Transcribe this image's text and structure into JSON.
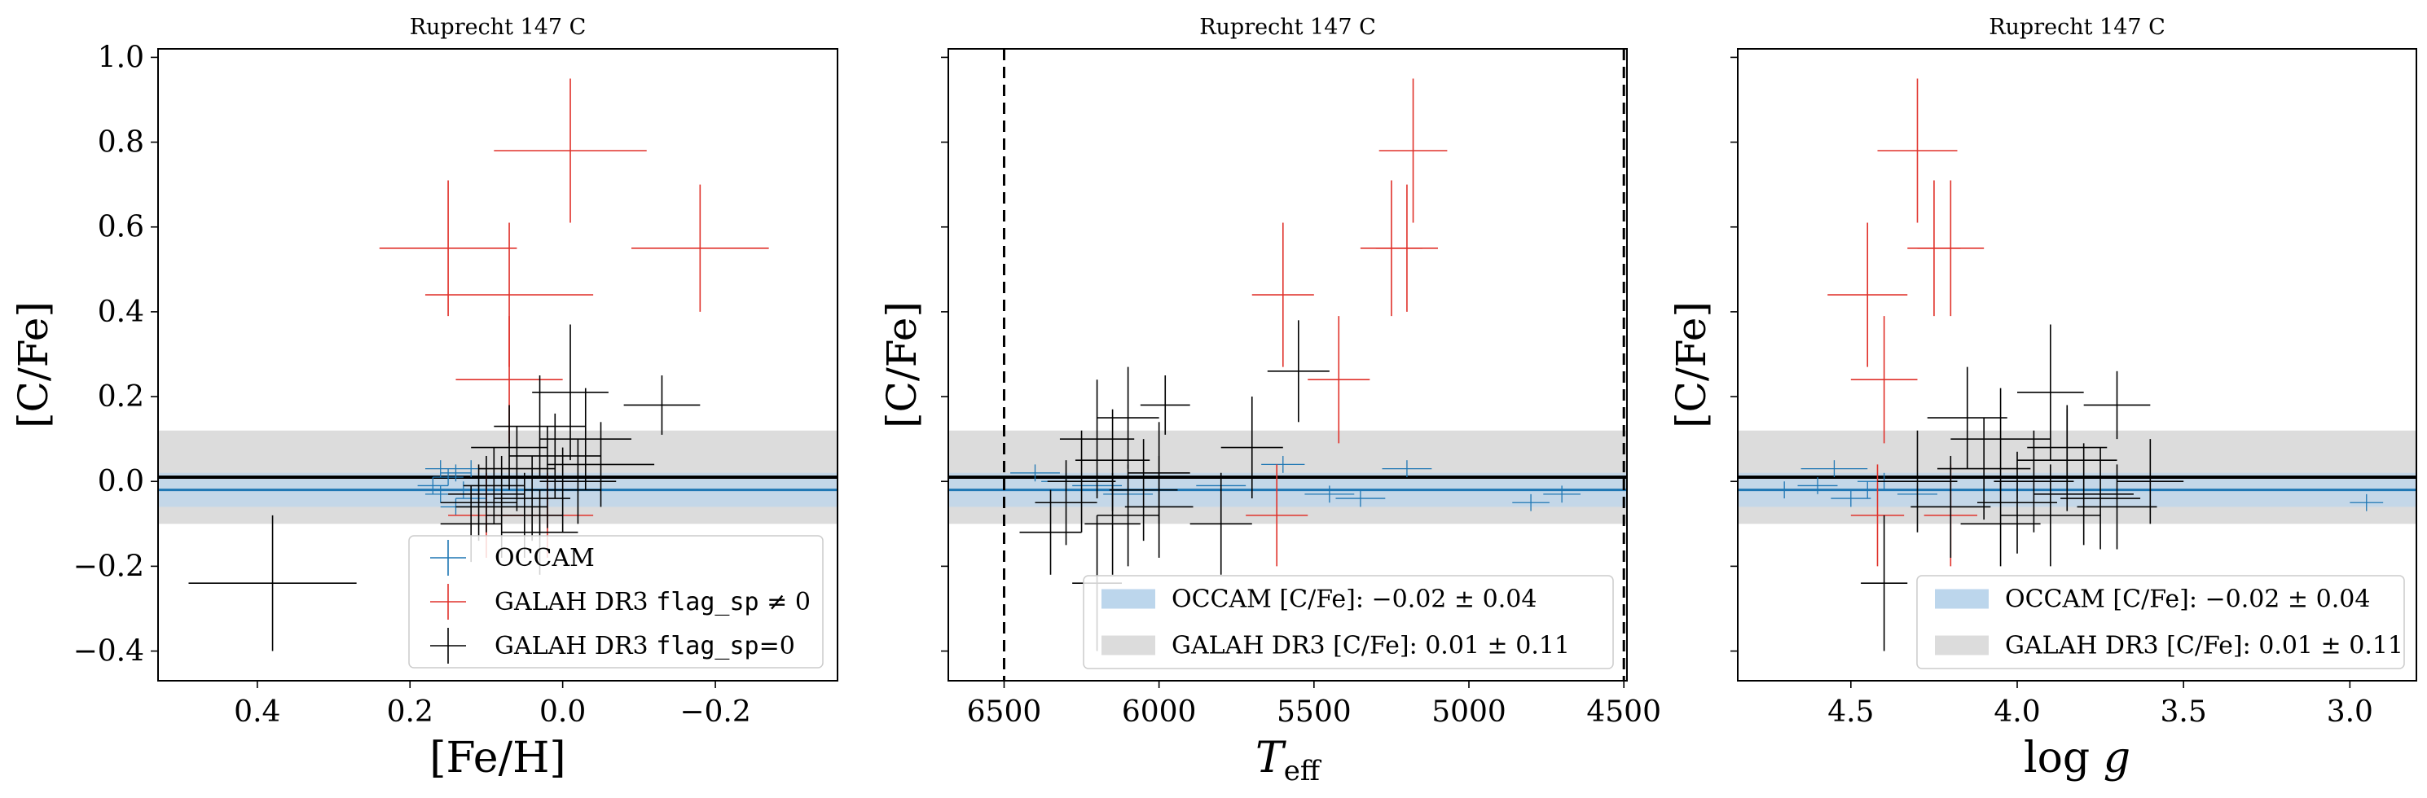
{
  "colors": {
    "occam": "#1f77b4",
    "occam_band": "#bcd6ec",
    "galah_band": "#dcdcdc",
    "galah_flag_nonzero": "#e0322b",
    "galah_flag_zero": "#000000"
  },
  "chart_data": [
    {
      "type": "scatter",
      "title": "Ruprecht 147 C",
      "xlabel": "[Fe/H]",
      "ylabel": "[C/Fe]",
      "xlim": [
        0.53,
        -0.36
      ],
      "ylim": [
        -0.47,
        1.02
      ],
      "xticks": [
        0.4,
        0.2,
        0.0,
        -0.2
      ],
      "xtick_labels": [
        "0.4",
        "0.2",
        "0.0",
        "−0.2"
      ],
      "yticks": [
        -0.4,
        -0.2,
        0.0,
        0.2,
        0.4,
        0.6,
        0.8,
        1.0
      ],
      "ytick_labels": [
        "−0.4",
        "−0.2",
        "0.0",
        "0.2",
        "0.4",
        "0.6",
        "0.8",
        "1.0"
      ],
      "show_ytick_labels": true,
      "legend": {
        "location": "lower right",
        "entries": [
          {
            "type": "cross",
            "series": 0,
            "label": "OCCAM"
          },
          {
            "type": "cross",
            "series": 1,
            "label": "GALAH DR3 flag_sp ≠ 0"
          },
          {
            "type": "cross",
            "series": 2,
            "label": "GALAH DR3 flag_sp=0"
          }
        ]
      },
      "bands": [
        {
          "series": 2,
          "center": 0.01,
          "half_width": 0.11
        },
        {
          "series": 0,
          "center": -0.02,
          "half_width": 0.04
        }
      ],
      "series": [
        {
          "name": "OCCAM",
          "points": [
            {
              "x": 0.16,
              "y": -0.03,
              "xerr": 0.02,
              "yerr": 0.02
            },
            {
              "x": 0.14,
              "y": 0.02,
              "xerr": 0.02,
              "yerr": 0.02
            },
            {
              "x": 0.17,
              "y": -0.01,
              "xerr": 0.02,
              "yerr": 0.02
            },
            {
              "x": 0.12,
              "y": -0.04,
              "xerr": 0.02,
              "yerr": 0.02
            },
            {
              "x": 0.13,
              "y": -0.02,
              "xerr": 0.02,
              "yerr": 0.02
            },
            {
              "x": 0.15,
              "y": 0.01,
              "xerr": 0.02,
              "yerr": 0.02
            },
            {
              "x": 0.11,
              "y": -0.03,
              "xerr": 0.02,
              "yerr": 0.02
            },
            {
              "x": 0.1,
              "y": -0.05,
              "xerr": 0.02,
              "yerr": 0.02
            },
            {
              "x": 0.14,
              "y": -0.06,
              "xerr": 0.02,
              "yerr": 0.02
            },
            {
              "x": 0.12,
              "y": 0.03,
              "xerr": 0.02,
              "yerr": 0.02
            },
            {
              "x": 0.09,
              "y": -0.03,
              "xerr": 0.02,
              "yerr": 0.02
            },
            {
              "x": 0.16,
              "y": 0.03,
              "xerr": 0.02,
              "yerr": 0.02
            }
          ]
        },
        {
          "name": "GALAH DR3 flag_sp ≠ 0",
          "points": [
            {
              "x": -0.01,
              "y": 0.78,
              "xerr": 0.1,
              "yerr": 0.17
            },
            {
              "x": 0.15,
              "y": 0.55,
              "xerr": 0.09,
              "yerr": 0.16
            },
            {
              "x": -0.18,
              "y": 0.55,
              "xerr": 0.09,
              "yerr": 0.15
            },
            {
              "x": 0.07,
              "y": 0.44,
              "xerr": 0.11,
              "yerr": 0.17
            },
            {
              "x": 0.07,
              "y": 0.24,
              "xerr": 0.07,
              "yerr": 0.15
            },
            {
              "x": 0.1,
              "y": -0.08,
              "xerr": 0.05,
              "yerr": 0.1
            },
            {
              "x": 0.02,
              "y": -0.08,
              "xerr": 0.06,
              "yerr": 0.1
            }
          ]
        },
        {
          "name": "GALAH DR3 flag_sp=0",
          "points": [
            {
              "x": 0.38,
              "y": -0.24,
              "xerr": 0.11,
              "yerr": 0.16
            },
            {
              "x": -0.13,
              "y": 0.18,
              "xerr": 0.05,
              "yerr": 0.07
            },
            {
              "x": -0.01,
              "y": 0.21,
              "xerr": 0.05,
              "yerr": 0.16
            },
            {
              "x": 0.03,
              "y": 0.13,
              "xerr": 0.06,
              "yerr": 0.12
            },
            {
              "x": -0.03,
              "y": 0.1,
              "xerr": 0.06,
              "yerr": 0.12
            },
            {
              "x": -0.05,
              "y": 0.04,
              "xerr": 0.07,
              "yerr": 0.1
            },
            {
              "x": 0.06,
              "y": 0.03,
              "xerr": 0.05,
              "yerr": 0.1
            },
            {
              "x": 0.02,
              "y": 0.01,
              "xerr": 0.06,
              "yerr": 0.12
            },
            {
              "x": 0.09,
              "y": -0.01,
              "xerr": 0.04,
              "yerr": 0.09
            },
            {
              "x": 0.0,
              "y": -0.02,
              "xerr": 0.05,
              "yerr": 0.1
            },
            {
              "x": 0.04,
              "y": -0.04,
              "xerr": 0.05,
              "yerr": 0.1
            },
            {
              "x": 0.11,
              "y": -0.05,
              "xerr": 0.05,
              "yerr": 0.09
            },
            {
              "x": 0.08,
              "y": -0.06,
              "xerr": 0.06,
              "yerr": 0.12
            },
            {
              "x": 0.05,
              "y": -0.08,
              "xerr": 0.05,
              "yerr": 0.1
            },
            {
              "x": 0.12,
              "y": -0.1,
              "xerr": 0.04,
              "yerr": 0.09
            },
            {
              "x": 0.01,
              "y": 0.06,
              "xerr": 0.06,
              "yerr": 0.1
            },
            {
              "x": -0.02,
              "y": 0.0,
              "xerr": 0.05,
              "yerr": 0.1
            },
            {
              "x": 0.07,
              "y": 0.08,
              "xerr": 0.05,
              "yerr": 0.1
            },
            {
              "x": 0.1,
              "y": -0.03,
              "xerr": 0.05,
              "yerr": 0.09
            },
            {
              "x": 0.03,
              "y": -0.12,
              "xerr": 0.05,
              "yerr": 0.1
            }
          ]
        }
      ]
    },
    {
      "type": "scatter",
      "title": "Ruprecht 147 C",
      "xlabel": "T_eff",
      "ylabel": "[C/Fe]",
      "xlim": [
        6680,
        4490
      ],
      "ylim": [
        -0.47,
        1.02
      ],
      "xticks": [
        6500,
        6000,
        5500,
        5000,
        4500
      ],
      "xtick_labels": [
        "6500",
        "6000",
        "5500",
        "5000",
        "4500"
      ],
      "yticks": [
        -0.4,
        -0.2,
        0.0,
        0.2,
        0.4,
        0.6,
        0.8,
        1.0
      ],
      "ytick_labels": [
        "−0.4",
        "−0.2",
        "0.0",
        "0.2",
        "0.4",
        "0.6",
        "0.8",
        "1.0"
      ],
      "show_ytick_labels": false,
      "vlines": [
        6500,
        4500
      ],
      "legend": {
        "location": "lower right",
        "entries": [
          {
            "type": "patch",
            "series": 0,
            "label": "OCCAM [C/Fe]: −0.02 ± 0.04"
          },
          {
            "type": "patch",
            "series": 2,
            "label": "GALAH DR3 [C/Fe]: 0.01 ± 0.11"
          }
        ]
      },
      "bands": [
        {
          "series": 2,
          "center": 0.01,
          "half_width": 0.11
        },
        {
          "series": 0,
          "center": -0.02,
          "half_width": 0.04
        }
      ],
      "series": [
        {
          "name": "OCCAM",
          "points": [
            {
              "x": 6400,
              "y": 0.02,
              "xerr": 80,
              "yerr": 0.02
            },
            {
              "x": 6200,
              "y": -0.01,
              "xerr": 80,
              "yerr": 0.02
            },
            {
              "x": 6100,
              "y": -0.03,
              "xerr": 80,
              "yerr": 0.02
            },
            {
              "x": 6300,
              "y": 0.0,
              "xerr": 80,
              "yerr": 0.02
            },
            {
              "x": 5600,
              "y": 0.04,
              "xerr": 70,
              "yerr": 0.02
            },
            {
              "x": 5450,
              "y": -0.03,
              "xerr": 80,
              "yerr": 0.02
            },
            {
              "x": 5200,
              "y": 0.03,
              "xerr": 80,
              "yerr": 0.02
            },
            {
              "x": 4800,
              "y": -0.05,
              "xerr": 60,
              "yerr": 0.02
            },
            {
              "x": 4700,
              "y": -0.03,
              "xerr": 60,
              "yerr": 0.02
            },
            {
              "x": 5350,
              "y": -0.04,
              "xerr": 80,
              "yerr": 0.02
            },
            {
              "x": 6000,
              "y": -0.02,
              "xerr": 80,
              "yerr": 0.02
            },
            {
              "x": 5800,
              "y": -0.01,
              "xerr": 80,
              "yerr": 0.02
            }
          ]
        },
        {
          "name": "GALAH DR3 flag_sp ≠ 0",
          "points": [
            {
              "x": 5180,
              "y": 0.78,
              "xerr": 110,
              "yerr": 0.17
            },
            {
              "x": 5250,
              "y": 0.55,
              "xerr": 100,
              "yerr": 0.16
            },
            {
              "x": 5200,
              "y": 0.55,
              "xerr": 100,
              "yerr": 0.15
            },
            {
              "x": 5600,
              "y": 0.44,
              "xerr": 100,
              "yerr": 0.17
            },
            {
              "x": 5420,
              "y": 0.24,
              "xerr": 100,
              "yerr": 0.15
            },
            {
              "x": 5620,
              "y": -0.08,
              "xerr": 100,
              "yerr": 0.12
            }
          ]
        },
        {
          "name": "GALAH DR3 flag_sp=0",
          "points": [
            {
              "x": 5550,
              "y": 0.26,
              "xerr": 100,
              "yerr": 0.12
            },
            {
              "x": 5980,
              "y": 0.18,
              "xerr": 80,
              "yerr": 0.07
            },
            {
              "x": 6100,
              "y": 0.15,
              "xerr": 100,
              "yerr": 0.12
            },
            {
              "x": 6200,
              "y": 0.1,
              "xerr": 120,
              "yerr": 0.14
            },
            {
              "x": 5700,
              "y": 0.08,
              "xerr": 100,
              "yerr": 0.12
            },
            {
              "x": 6150,
              "y": 0.05,
              "xerr": 120,
              "yerr": 0.12
            },
            {
              "x": 6250,
              "y": 0.0,
              "xerr": 110,
              "yerr": 0.12
            },
            {
              "x": 6050,
              "y": -0.02,
              "xerr": 110,
              "yerr": 0.12
            },
            {
              "x": 6300,
              "y": -0.05,
              "xerr": 100,
              "yerr": 0.1
            },
            {
              "x": 6000,
              "y": -0.06,
              "xerr": 110,
              "yerr": 0.12
            },
            {
              "x": 6100,
              "y": -0.08,
              "xerr": 100,
              "yerr": 0.12
            },
            {
              "x": 5800,
              "y": -0.1,
              "xerr": 100,
              "yerr": 0.12
            },
            {
              "x": 6350,
              "y": -0.12,
              "xerr": 100,
              "yerr": 0.1
            },
            {
              "x": 6150,
              "y": -0.1,
              "xerr": 90,
              "yerr": 0.12
            },
            {
              "x": 6200,
              "y": -0.24,
              "xerr": 80,
              "yerr": 0.16
            },
            {
              "x": 6000,
              "y": 0.02,
              "xerr": 100,
              "yerr": 0.12
            }
          ]
        }
      ]
    },
    {
      "type": "scatter",
      "title": "Ruprecht 147 C",
      "xlabel": "log g",
      "ylabel": "[C/Fe]",
      "xlim": [
        4.84,
        2.8
      ],
      "ylim": [
        -0.47,
        1.02
      ],
      "xticks": [
        4.5,
        4.0,
        3.5,
        3.0
      ],
      "xtick_labels": [
        "4.5",
        "4.0",
        "3.5",
        "3.0"
      ],
      "yticks": [
        -0.4,
        -0.2,
        0.0,
        0.2,
        0.4,
        0.6,
        0.8,
        1.0
      ],
      "ytick_labels": [
        "−0.4",
        "−0.2",
        "0.0",
        "0.2",
        "0.4",
        "0.6",
        "0.8",
        "1.0"
      ],
      "show_ytick_labels": false,
      "legend": {
        "location": "lower right",
        "entries": [
          {
            "type": "patch",
            "series": 0,
            "label": "OCCAM [C/Fe]: −0.02 ± 0.04"
          },
          {
            "type": "patch",
            "series": 2,
            "label": "GALAH DR3 [C/Fe]: 0.01 ± 0.11"
          }
        ]
      },
      "bands": [
        {
          "series": 2,
          "center": 0.01,
          "half_width": 0.11
        },
        {
          "series": 0,
          "center": -0.02,
          "half_width": 0.04
        }
      ],
      "series": [
        {
          "name": "OCCAM",
          "points": [
            {
              "x": 4.55,
              "y": 0.03,
              "xerr": 0.1,
              "yerr": 0.02
            },
            {
              "x": 4.45,
              "y": -0.02,
              "xerr": 0.08,
              "yerr": 0.02
            },
            {
              "x": 4.4,
              "y": 0.0,
              "xerr": 0.08,
              "yerr": 0.02
            },
            {
              "x": 4.6,
              "y": -0.01,
              "xerr": 0.06,
              "yerr": 0.02
            },
            {
              "x": 4.5,
              "y": -0.04,
              "xerr": 0.06,
              "yerr": 0.02
            },
            {
              "x": 4.3,
              "y": -0.03,
              "xerr": 0.06,
              "yerr": 0.02
            },
            {
              "x": 4.0,
              "y": -0.02,
              "xerr": 0.08,
              "yerr": 0.02
            },
            {
              "x": 2.95,
              "y": -0.05,
              "xerr": 0.05,
              "yerr": 0.02
            },
            {
              "x": 4.7,
              "y": -0.02,
              "xerr": 0.06,
              "yerr": 0.02
            }
          ]
        },
        {
          "name": "GALAH DR3 flag_sp ≠ 0",
          "points": [
            {
              "x": 4.3,
              "y": 0.78,
              "xerr": 0.12,
              "yerr": 0.17
            },
            {
              "x": 4.45,
              "y": 0.44,
              "xerr": 0.12,
              "yerr": 0.17
            },
            {
              "x": 4.2,
              "y": 0.55,
              "xerr": 0.1,
              "yerr": 0.16
            },
            {
              "x": 4.25,
              "y": 0.55,
              "xerr": 0.08,
              "yerr": 0.16
            },
            {
              "x": 4.4,
              "y": 0.24,
              "xerr": 0.1,
              "yerr": 0.15
            },
            {
              "x": 4.42,
              "y": -0.08,
              "xerr": 0.08,
              "yerr": 0.12
            },
            {
              "x": 4.2,
              "y": -0.08,
              "xerr": 0.08,
              "yerr": 0.12
            }
          ]
        },
        {
          "name": "GALAH DR3 flag_sp=0",
          "points": [
            {
              "x": 4.4,
              "y": -0.24,
              "xerr": 0.07,
              "yerr": 0.16
            },
            {
              "x": 3.7,
              "y": 0.18,
              "xerr": 0.1,
              "yerr": 0.08
            },
            {
              "x": 3.9,
              "y": 0.21,
              "xerr": 0.1,
              "yerr": 0.16
            },
            {
              "x": 4.15,
              "y": 0.15,
              "xerr": 0.12,
              "yerr": 0.12
            },
            {
              "x": 4.05,
              "y": 0.1,
              "xerr": 0.15,
              "yerr": 0.12
            },
            {
              "x": 3.85,
              "y": 0.05,
              "xerr": 0.15,
              "yerr": 0.12
            },
            {
              "x": 4.1,
              "y": 0.03,
              "xerr": 0.14,
              "yerr": 0.12
            },
            {
              "x": 3.95,
              "y": 0.0,
              "xerr": 0.12,
              "yerr": 0.12
            },
            {
              "x": 3.8,
              "y": -0.03,
              "xerr": 0.15,
              "yerr": 0.12
            },
            {
              "x": 4.0,
              "y": -0.05,
              "xerr": 0.12,
              "yerr": 0.12
            },
            {
              "x": 3.9,
              "y": -0.08,
              "xerr": 0.15,
              "yerr": 0.12
            },
            {
              "x": 3.75,
              "y": -0.04,
              "xerr": 0.12,
              "yerr": 0.12
            },
            {
              "x": 4.2,
              "y": -0.06,
              "xerr": 0.12,
              "yerr": 0.12
            },
            {
              "x": 3.6,
              "y": 0.0,
              "xerr": 0.1,
              "yerr": 0.1
            },
            {
              "x": 4.3,
              "y": 0.0,
              "xerr": 0.12,
              "yerr": 0.12
            },
            {
              "x": 3.7,
              "y": -0.06,
              "xerr": 0.12,
              "yerr": 0.1
            },
            {
              "x": 4.05,
              "y": -0.1,
              "xerr": 0.12,
              "yerr": 0.1
            },
            {
              "x": 3.85,
              "y": 0.08,
              "xerr": 0.12,
              "yerr": 0.1
            }
          ]
        }
      ]
    }
  ]
}
